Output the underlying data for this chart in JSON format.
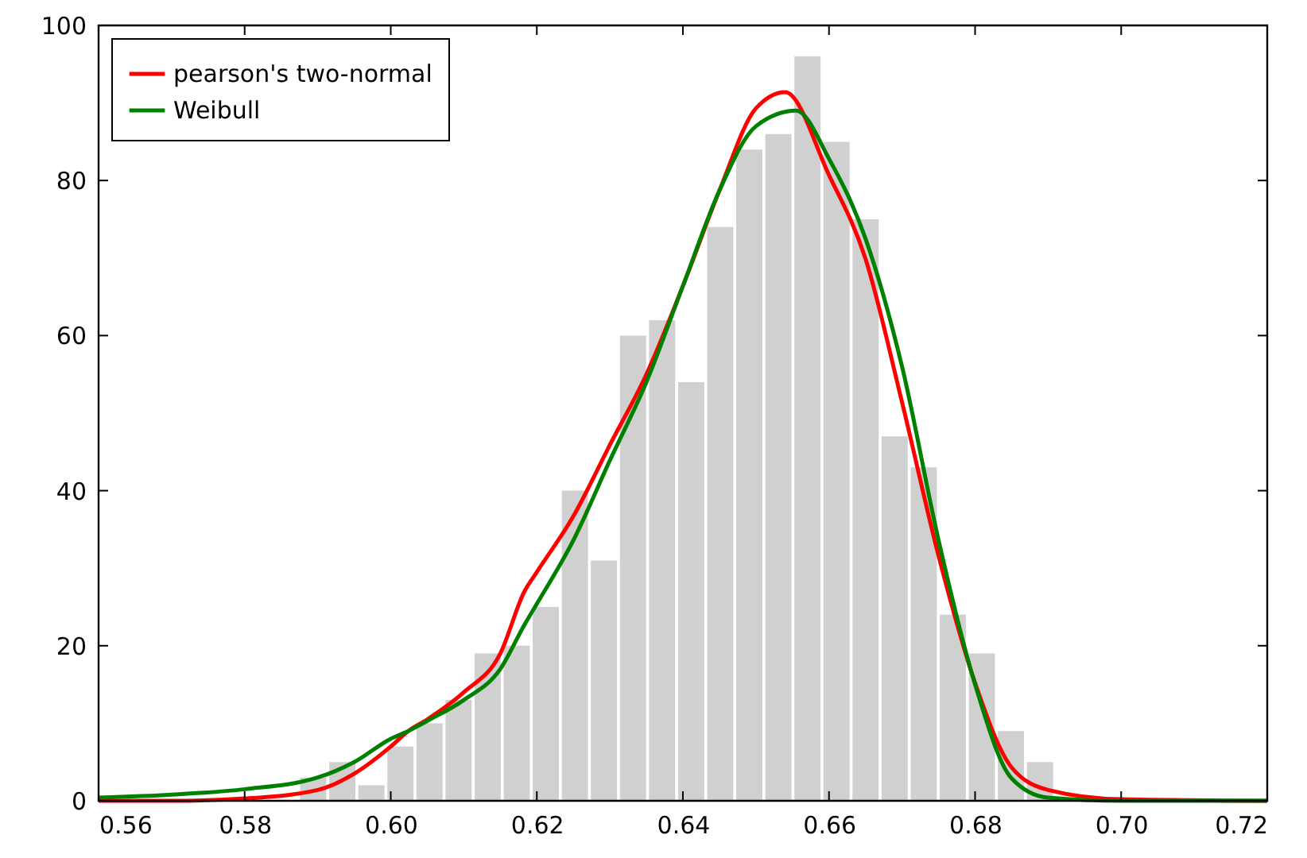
{
  "chart_data": {
    "type": "histogram",
    "bins": [
      0.5874,
      0.59138,
      0.59536,
      0.59934,
      0.60332,
      0.6073,
      0.61128,
      0.61526,
      0.61924,
      0.62322,
      0.6272,
      0.63118,
      0.63516,
      0.63914,
      0.64312,
      0.6471,
      0.65108,
      0.65506,
      0.65904,
      0.66302,
      0.667,
      0.67098,
      0.67496,
      0.67894,
      0.68292,
      0.6869,
      0.69088
    ],
    "values": [
      3,
      5,
      2,
      7,
      10,
      13,
      19,
      20,
      25,
      40,
      31,
      60,
      62,
      54,
      74,
      84,
      86,
      96,
      85,
      75,
      47,
      43,
      24,
      19,
      9,
      5
    ],
    "color": "#d0d0d0",
    "series": [
      {
        "name": "pearson's two-normal",
        "type": "line",
        "color": "#ff0000",
        "x": [
          0.56,
          0.57,
          0.58,
          0.59,
          0.595,
          0.6,
          0.6024,
          0.605,
          0.61,
          0.615,
          0.6183,
          0.62,
          0.625,
          0.63,
          0.635,
          0.64,
          0.645,
          0.65,
          0.654,
          0.66,
          0.665,
          0.67,
          0.675,
          0.68,
          0.685,
          0.69,
          0.7,
          0.72
        ],
        "values": [
          0,
          0,
          0.3,
          1.4,
          3.5,
          7,
          9,
          10.5,
          14,
          19,
          27,
          29.5,
          36.7,
          45.9,
          55,
          66.4,
          78.7,
          89.3,
          91.4,
          80.7,
          69.9,
          51.4,
          31.6,
          15.2,
          4.3,
          1.4,
          0.2,
          0
        ]
      },
      {
        "name": "Weibull",
        "type": "line",
        "color": "#008000",
        "x": [
          0.56,
          0.57,
          0.58,
          0.59,
          0.595,
          0.6,
          0.6024,
          0.605,
          0.61,
          0.615,
          0.6183,
          0.62,
          0.625,
          0.63,
          0.635,
          0.64,
          0.645,
          0.65,
          0.6555,
          0.66,
          0.665,
          0.67,
          0.675,
          0.68,
          0.685,
          0.69,
          0.7,
          0.72
        ],
        "values": [
          0.4,
          0.8,
          1.5,
          3,
          5,
          8,
          9,
          10.3,
          13,
          17,
          22.7,
          25.4,
          33.6,
          43.9,
          54,
          66.4,
          78.7,
          87,
          89,
          82.8,
          72.5,
          56,
          33.6,
          15,
          2.9,
          0.4,
          0,
          0
        ]
      }
    ],
    "xlim": [
      0.56,
      0.72
    ],
    "xticks": [
      0.56,
      0.58,
      {
        "value": 0.6,
        "label": "0.60"
      },
      0.62,
      0.64,
      0.66,
      0.68,
      {
        "value": 0.7,
        "label": "0.70"
      },
      0.72
    ],
    "ylim": [
      0,
      100
    ],
    "yticks": [
      0,
      20,
      40,
      60,
      80,
      100
    ],
    "grid": false,
    "legend": "top left"
  }
}
